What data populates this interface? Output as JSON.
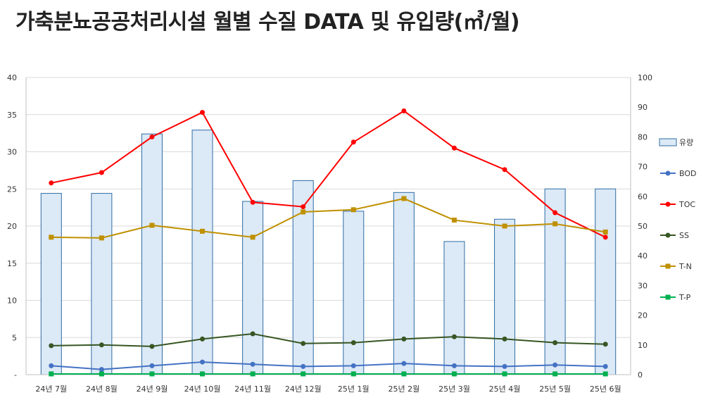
{
  "title": "가축분뇨공공처리시설 월별 수질 DATA 및 유입량(㎥/월)",
  "chart_data": {
    "type": "bar+line",
    "categories": [
      "24년 7월",
      "24년 8월",
      "24년 9월",
      "24년 10월",
      "24년 11월",
      "24년 12월",
      "25년 1월",
      "25년 2월",
      "25년 3월",
      "25년 4월",
      "25년 5월",
      "25년 6월"
    ],
    "left_axis": {
      "min": 0,
      "max": 40,
      "ticks": [
        "-",
        "5",
        "10",
        "15",
        "20",
        "25",
        "30",
        "35",
        "40"
      ]
    },
    "right_axis": {
      "min": 0,
      "max": 100,
      "ticks": [
        "0",
        "10",
        "20",
        "30",
        "40",
        "50",
        "60",
        "70",
        "80",
        "90",
        "100"
      ]
    },
    "bars": {
      "name": "유량",
      "axis": "right",
      "color": "#dce9f6",
      "stroke": "#2e6ca4",
      "values": [
        61,
        61,
        81,
        82.3,
        58.3,
        65.3,
        55,
        61.3,
        44.8,
        52.3,
        62.5,
        62.5
      ]
    },
    "series": [
      {
        "name": "BOD",
        "axis": "left",
        "color": "#4472c4",
        "marker": "circle",
        "values": [
          1.2,
          0.7,
          1.2,
          1.7,
          1.4,
          1.1,
          1.2,
          1.5,
          1.2,
          1.1,
          1.3,
          1.1
        ]
      },
      {
        "name": "TOC",
        "axis": "left",
        "color": "#ff0000",
        "marker": "circle",
        "values": [
          25.8,
          27.2,
          32.0,
          35.3,
          23.2,
          22.6,
          31.3,
          35.5,
          30.5,
          27.6,
          21.8,
          18.5
        ]
      },
      {
        "name": "SS",
        "axis": "left",
        "color": "#375623",
        "marker": "circle",
        "values": [
          3.9,
          4.0,
          3.8,
          4.8,
          5.5,
          4.2,
          4.3,
          4.8,
          5.1,
          4.8,
          4.3,
          4.1
        ]
      },
      {
        "name": "T-N",
        "axis": "left",
        "color": "#bf9000",
        "marker": "square",
        "values": [
          18.5,
          18.4,
          20.1,
          19.3,
          18.5,
          21.9,
          22.2,
          23.7,
          20.8,
          20.0,
          20.3,
          19.2
        ]
      },
      {
        "name": "T-P",
        "axis": "left",
        "color": "#00b050",
        "marker": "square",
        "values": [
          0.1,
          0.1,
          0.1,
          0.1,
          0.1,
          0.1,
          0.1,
          0.1,
          0.1,
          0.1,
          0.1,
          0.1
        ]
      }
    ],
    "grid": true,
    "legend_position": "right"
  }
}
